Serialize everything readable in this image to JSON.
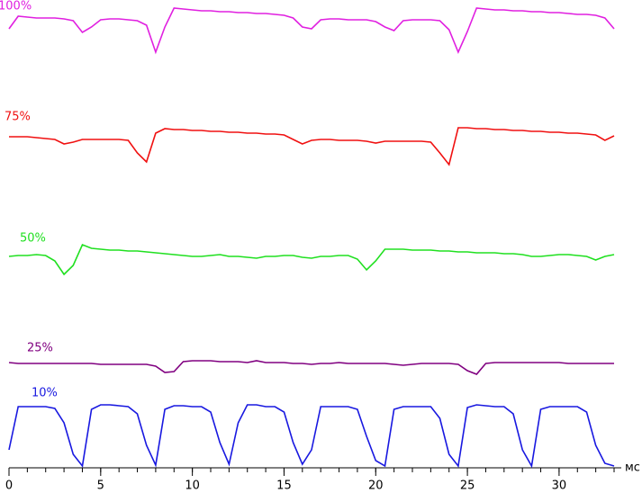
{
  "chart_data": {
    "type": "line",
    "x_label": "мс",
    "xlim": [
      0,
      33
    ],
    "xticks": [
      0,
      5,
      10,
      15,
      20,
      25,
      30
    ],
    "xminorticks": [
      0,
      1,
      2,
      3,
      4,
      5,
      6,
      7,
      8,
      9,
      10,
      11,
      12,
      13,
      14,
      15,
      16,
      17,
      18,
      19,
      20,
      21,
      22,
      23,
      24,
      25,
      26,
      27,
      28,
      29,
      30,
      31,
      32,
      33
    ],
    "ylim": [
      0,
      520
    ],
    "x": [
      0,
      0.5,
      1,
      1.5,
      2,
      2.5,
      3,
      3.5,
      4,
      4.5,
      5,
      5.5,
      6,
      6.5,
      7,
      7.5,
      8,
      8.5,
      9,
      9.5,
      10,
      10.5,
      11,
      11.5,
      12,
      12.5,
      13,
      13.5,
      14,
      14.5,
      15,
      15.5,
      16,
      16.5,
      17,
      17.5,
      18,
      18.5,
      19,
      19.5,
      20,
      20.5,
      21,
      21.5,
      22,
      22.5,
      23,
      23.5,
      24,
      24.5,
      25,
      25.5,
      26,
      26.5,
      27,
      27.5,
      28,
      28.5,
      29,
      29.5,
      30,
      30.5,
      31,
      31.5,
      32,
      32.5,
      33
    ],
    "series": [
      {
        "name": "100%",
        "color": "#e020e0",
        "values": [
          488,
          502,
          501,
          500,
          500,
          500,
          499,
          497,
          484,
          490,
          498,
          499,
          499,
          498,
          497,
          492,
          462,
          490,
          511,
          510,
          509,
          508,
          508,
          507,
          507,
          506,
          506,
          505,
          505,
          504,
          503,
          500,
          490,
          488,
          498,
          499,
          499,
          498,
          498,
          498,
          496,
          490,
          486,
          497,
          498,
          498,
          498,
          497,
          487,
          462,
          485,
          511,
          510,
          509,
          509,
          508,
          508,
          507,
          507,
          506,
          506,
          505,
          504,
          504,
          503,
          500,
          488
        ]
      },
      {
        "name": "75%",
        "color": "#f01010",
        "values": [
          368,
          368,
          368,
          367,
          366,
          365,
          360,
          362,
          365,
          365,
          365,
          365,
          365,
          364,
          350,
          340,
          372,
          377,
          376,
          376,
          375,
          375,
          374,
          374,
          373,
          373,
          372,
          372,
          371,
          371,
          370,
          365,
          360,
          364,
          365,
          365,
          364,
          364,
          364,
          363,
          361,
          363,
          363,
          363,
          363,
          363,
          362,
          350,
          337,
          378,
          378,
          377,
          377,
          376,
          376,
          375,
          375,
          374,
          374,
          373,
          373,
          372,
          372,
          371,
          370,
          364,
          369
        ]
      },
      {
        "name": "50%",
        "color": "#20e020",
        "values": [
          235,
          236,
          236,
          237,
          236,
          230,
          215,
          225,
          248,
          244,
          243,
          242,
          242,
          241,
          241,
          240,
          239,
          238,
          237,
          236,
          235,
          235,
          236,
          237,
          235,
          235,
          234,
          233,
          235,
          235,
          236,
          236,
          234,
          233,
          235,
          235,
          236,
          236,
          232,
          220,
          230,
          243,
          243,
          243,
          242,
          242,
          242,
          241,
          241,
          240,
          240,
          239,
          239,
          239,
          238,
          238,
          237,
          235,
          235,
          236,
          237,
          237,
          236,
          235,
          231,
          235,
          237
        ]
      },
      {
        "name": "25%",
        "color": "#800080",
        "values": [
          117,
          116,
          116,
          116,
          116,
          116,
          116,
          116,
          116,
          116,
          115,
          115,
          115,
          115,
          115,
          115,
          113,
          106,
          107,
          118,
          119,
          119,
          119,
          118,
          118,
          118,
          117,
          119,
          117,
          117,
          117,
          116,
          116,
          115,
          116,
          116,
          117,
          116,
          116,
          116,
          116,
          116,
          115,
          114,
          115,
          116,
          116,
          116,
          116,
          115,
          108,
          104,
          116,
          117,
          117,
          117,
          117,
          117,
          117,
          117,
          117,
          116,
          116,
          116,
          116,
          116,
          116
        ]
      },
      {
        "name": "10%",
        "color": "#1818e0",
        "values": [
          20,
          68,
          68,
          68,
          68,
          66,
          50,
          15,
          2,
          65,
          70,
          70,
          69,
          68,
          60,
          25,
          3,
          65,
          69,
          69,
          68,
          68,
          62,
          28,
          4,
          50,
          70,
          70,
          68,
          68,
          62,
          28,
          4,
          20,
          68,
          68,
          68,
          68,
          65,
          35,
          8,
          2,
          65,
          68,
          68,
          68,
          68,
          55,
          15,
          2,
          67,
          70,
          69,
          68,
          68,
          60,
          20,
          2,
          65,
          68,
          68,
          68,
          68,
          62,
          25,
          5,
          2
        ]
      }
    ]
  }
}
